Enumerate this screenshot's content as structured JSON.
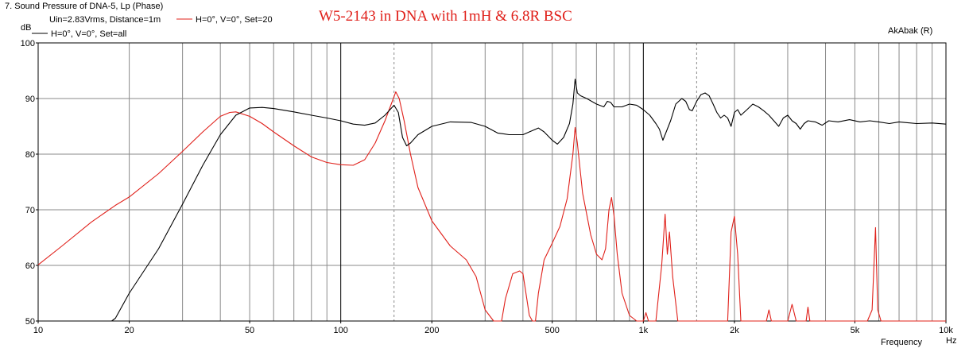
{
  "chart_data": {
    "type": "line",
    "title": "7. Sound Pressure of DNA-5, Lp (Phase)",
    "annotation": "W5-2143 in DNA with 1mH & 6.8R BSC",
    "brand": "AkAbak (R)",
    "y_unit": "dB",
    "x_unit": "Hz",
    "xlabel": "Frequency",
    "x_scale": "log",
    "xlim": [
      10,
      10000
    ],
    "ylim": [
      50,
      100
    ],
    "x_ticks": [
      {
        "value": 10,
        "label": "10"
      },
      {
        "value": 20,
        "label": "20"
      },
      {
        "value": 50,
        "label": "50"
      },
      {
        "value": 100,
        "label": "100"
      },
      {
        "value": 200,
        "label": "200"
      },
      {
        "value": 500,
        "label": "500"
      },
      {
        "value": 1000,
        "label": "1k"
      },
      {
        "value": 2000,
        "label": "2k"
      },
      {
        "value": 5000,
        "label": "5k"
      },
      {
        "value": 10000,
        "label": "10k"
      }
    ],
    "y_ticks": [
      {
        "value": 100,
        "label": "100"
      },
      {
        "value": 90,
        "label": "90"
      },
      {
        "value": 80,
        "label": "80"
      },
      {
        "value": 70,
        "label": "70"
      },
      {
        "value": 60,
        "label": "60"
      },
      {
        "value": 50,
        "label": "50"
      }
    ],
    "grid": true,
    "legend_position": "top-left",
    "legend_header": "Uin=2.83Vrms, Distance=1m",
    "series": [
      {
        "name": "H=0°, V=0°, Set=20",
        "color": "#e0201a",
        "points": [
          [
            10,
            60.1
          ],
          [
            12,
            63.5
          ],
          [
            15,
            67.8
          ],
          [
            18,
            70.8
          ],
          [
            20,
            72.3
          ],
          [
            25,
            76.5
          ],
          [
            30,
            80.5
          ],
          [
            35,
            84.0
          ],
          [
            40,
            86.8
          ],
          [
            43,
            87.5
          ],
          [
            45,
            87.6
          ],
          [
            50,
            86.8
          ],
          [
            55,
            85.5
          ],
          [
            60,
            84.0
          ],
          [
            70,
            81.5
          ],
          [
            80,
            79.5
          ],
          [
            90,
            78.5
          ],
          [
            100,
            78.1
          ],
          [
            110,
            78.0
          ],
          [
            120,
            79.0
          ],
          [
            130,
            82.0
          ],
          [
            140,
            86.0
          ],
          [
            148,
            89.5
          ],
          [
            152,
            91.2
          ],
          [
            156,
            90.0
          ],
          [
            162,
            86.0
          ],
          [
            170,
            80.0
          ],
          [
            180,
            74.0
          ],
          [
            200,
            68.0
          ],
          [
            230,
            63.5
          ],
          [
            260,
            61.0
          ],
          [
            280,
            58.0
          ],
          [
            300,
            52.0
          ],
          [
            320,
            50.0
          ],
          [
            340,
            50.0
          ],
          [
            350,
            54.0
          ],
          [
            370,
            58.5
          ],
          [
            390,
            59.0
          ],
          [
            400,
            58.5
          ],
          [
            420,
            51.0
          ],
          [
            430,
            50.0
          ],
          [
            440,
            50.0
          ],
          [
            450,
            55.0
          ],
          [
            470,
            61.0
          ],
          [
            500,
            64.0
          ],
          [
            530,
            67.0
          ],
          [
            560,
            72.0
          ],
          [
            585,
            80.0
          ],
          [
            595,
            84.8
          ],
          [
            605,
            82.0
          ],
          [
            630,
            73.0
          ],
          [
            670,
            65.5
          ],
          [
            700,
            62.0
          ],
          [
            730,
            61.0
          ],
          [
            750,
            63.0
          ],
          [
            770,
            70.0
          ],
          [
            785,
            72.2
          ],
          [
            800,
            69.0
          ],
          [
            820,
            62.0
          ],
          [
            850,
            55.0
          ],
          [
            900,
            51.0
          ],
          [
            950,
            50.0
          ],
          [
            1000,
            50.0
          ],
          [
            1020,
            51.5
          ],
          [
            1040,
            50.0
          ],
          [
            1100,
            50.0
          ],
          [
            1150,
            60.0
          ],
          [
            1180,
            69.2
          ],
          [
            1200,
            62.0
          ],
          [
            1220,
            66.0
          ],
          [
            1250,
            58.0
          ],
          [
            1300,
            50.0
          ],
          [
            1900,
            50.0
          ],
          [
            1950,
            66.0
          ],
          [
            2000,
            68.8
          ],
          [
            2050,
            62.0
          ],
          [
            2100,
            50.0
          ],
          [
            2550,
            50.0
          ],
          [
            2600,
            52.0
          ],
          [
            2650,
            50.0
          ],
          [
            3000,
            50.0
          ],
          [
            3100,
            53.0
          ],
          [
            3200,
            50.0
          ],
          [
            3450,
            50.0
          ],
          [
            3500,
            52.5
          ],
          [
            3550,
            50.0
          ],
          [
            5500,
            50.0
          ],
          [
            5700,
            52.0
          ],
          [
            5850,
            66.8
          ],
          [
            5950,
            52.0
          ],
          [
            6100,
            50.0
          ],
          [
            10000,
            50.0
          ]
        ]
      },
      {
        "name": "H=0°, V=0°, Set=all",
        "color": "#000000",
        "points": [
          [
            10,
            50.0
          ],
          [
            17.5,
            50.0
          ],
          [
            18,
            50.5
          ],
          [
            20,
            55.0
          ],
          [
            25,
            63.0
          ],
          [
            30,
            71.0
          ],
          [
            35,
            78.0
          ],
          [
            40,
            83.5
          ],
          [
            45,
            87.0
          ],
          [
            50,
            88.3
          ],
          [
            55,
            88.4
          ],
          [
            60,
            88.2
          ],
          [
            70,
            87.6
          ],
          [
            80,
            87.0
          ],
          [
            90,
            86.5
          ],
          [
            100,
            86.0
          ],
          [
            110,
            85.4
          ],
          [
            120,
            85.2
          ],
          [
            130,
            85.6
          ],
          [
            140,
            87.0
          ],
          [
            150,
            88.8
          ],
          [
            155,
            87.5
          ],
          [
            160,
            83.0
          ],
          [
            165,
            81.5
          ],
          [
            170,
            82.0
          ],
          [
            180,
            83.5
          ],
          [
            200,
            85.0
          ],
          [
            230,
            85.8
          ],
          [
            270,
            85.7
          ],
          [
            300,
            85.0
          ],
          [
            330,
            83.8
          ],
          [
            360,
            83.5
          ],
          [
            400,
            83.5
          ],
          [
            420,
            84.0
          ],
          [
            450,
            84.7
          ],
          [
            470,
            84.0
          ],
          [
            500,
            82.5
          ],
          [
            520,
            81.8
          ],
          [
            545,
            83.0
          ],
          [
            570,
            85.5
          ],
          [
            585,
            89.0
          ],
          [
            595,
            93.5
          ],
          [
            605,
            91.0
          ],
          [
            620,
            90.5
          ],
          [
            650,
            90.0
          ],
          [
            700,
            89.0
          ],
          [
            740,
            88.5
          ],
          [
            760,
            89.5
          ],
          [
            780,
            89.3
          ],
          [
            800,
            88.5
          ],
          [
            850,
            88.5
          ],
          [
            900,
            89.0
          ],
          [
            950,
            88.8
          ],
          [
            1000,
            88.0
          ],
          [
            1050,
            87.0
          ],
          [
            1100,
            85.5
          ],
          [
            1130,
            84.5
          ],
          [
            1160,
            82.5
          ],
          [
            1190,
            84.0
          ],
          [
            1230,
            86.0
          ],
          [
            1280,
            89.0
          ],
          [
            1340,
            90.0
          ],
          [
            1380,
            89.5
          ],
          [
            1420,
            88.0
          ],
          [
            1450,
            87.8
          ],
          [
            1500,
            89.5
          ],
          [
            1550,
            90.7
          ],
          [
            1600,
            91.0
          ],
          [
            1650,
            90.5
          ],
          [
            1700,
            89.0
          ],
          [
            1750,
            87.5
          ],
          [
            1800,
            86.5
          ],
          [
            1850,
            87.0
          ],
          [
            1900,
            86.5
          ],
          [
            1950,
            85.0
          ],
          [
            2000,
            87.5
          ],
          [
            2050,
            88.0
          ],
          [
            2100,
            87.0
          ],
          [
            2200,
            88.0
          ],
          [
            2300,
            89.0
          ],
          [
            2400,
            88.5
          ],
          [
            2500,
            87.8
          ],
          [
            2600,
            87.0
          ],
          [
            2700,
            86.0
          ],
          [
            2800,
            85.0
          ],
          [
            2900,
            86.5
          ],
          [
            3000,
            87.0
          ],
          [
            3100,
            86.0
          ],
          [
            3200,
            85.5
          ],
          [
            3300,
            84.5
          ],
          [
            3400,
            85.5
          ],
          [
            3500,
            86.0
          ],
          [
            3700,
            85.8
          ],
          [
            3900,
            85.2
          ],
          [
            4100,
            86.0
          ],
          [
            4400,
            85.8
          ],
          [
            4800,
            86.2
          ],
          [
            5200,
            85.8
          ],
          [
            5600,
            86.0
          ],
          [
            6000,
            85.8
          ],
          [
            6500,
            85.5
          ],
          [
            7000,
            85.8
          ],
          [
            8000,
            85.5
          ],
          [
            9000,
            85.6
          ],
          [
            10000,
            85.4
          ]
        ]
      }
    ]
  }
}
